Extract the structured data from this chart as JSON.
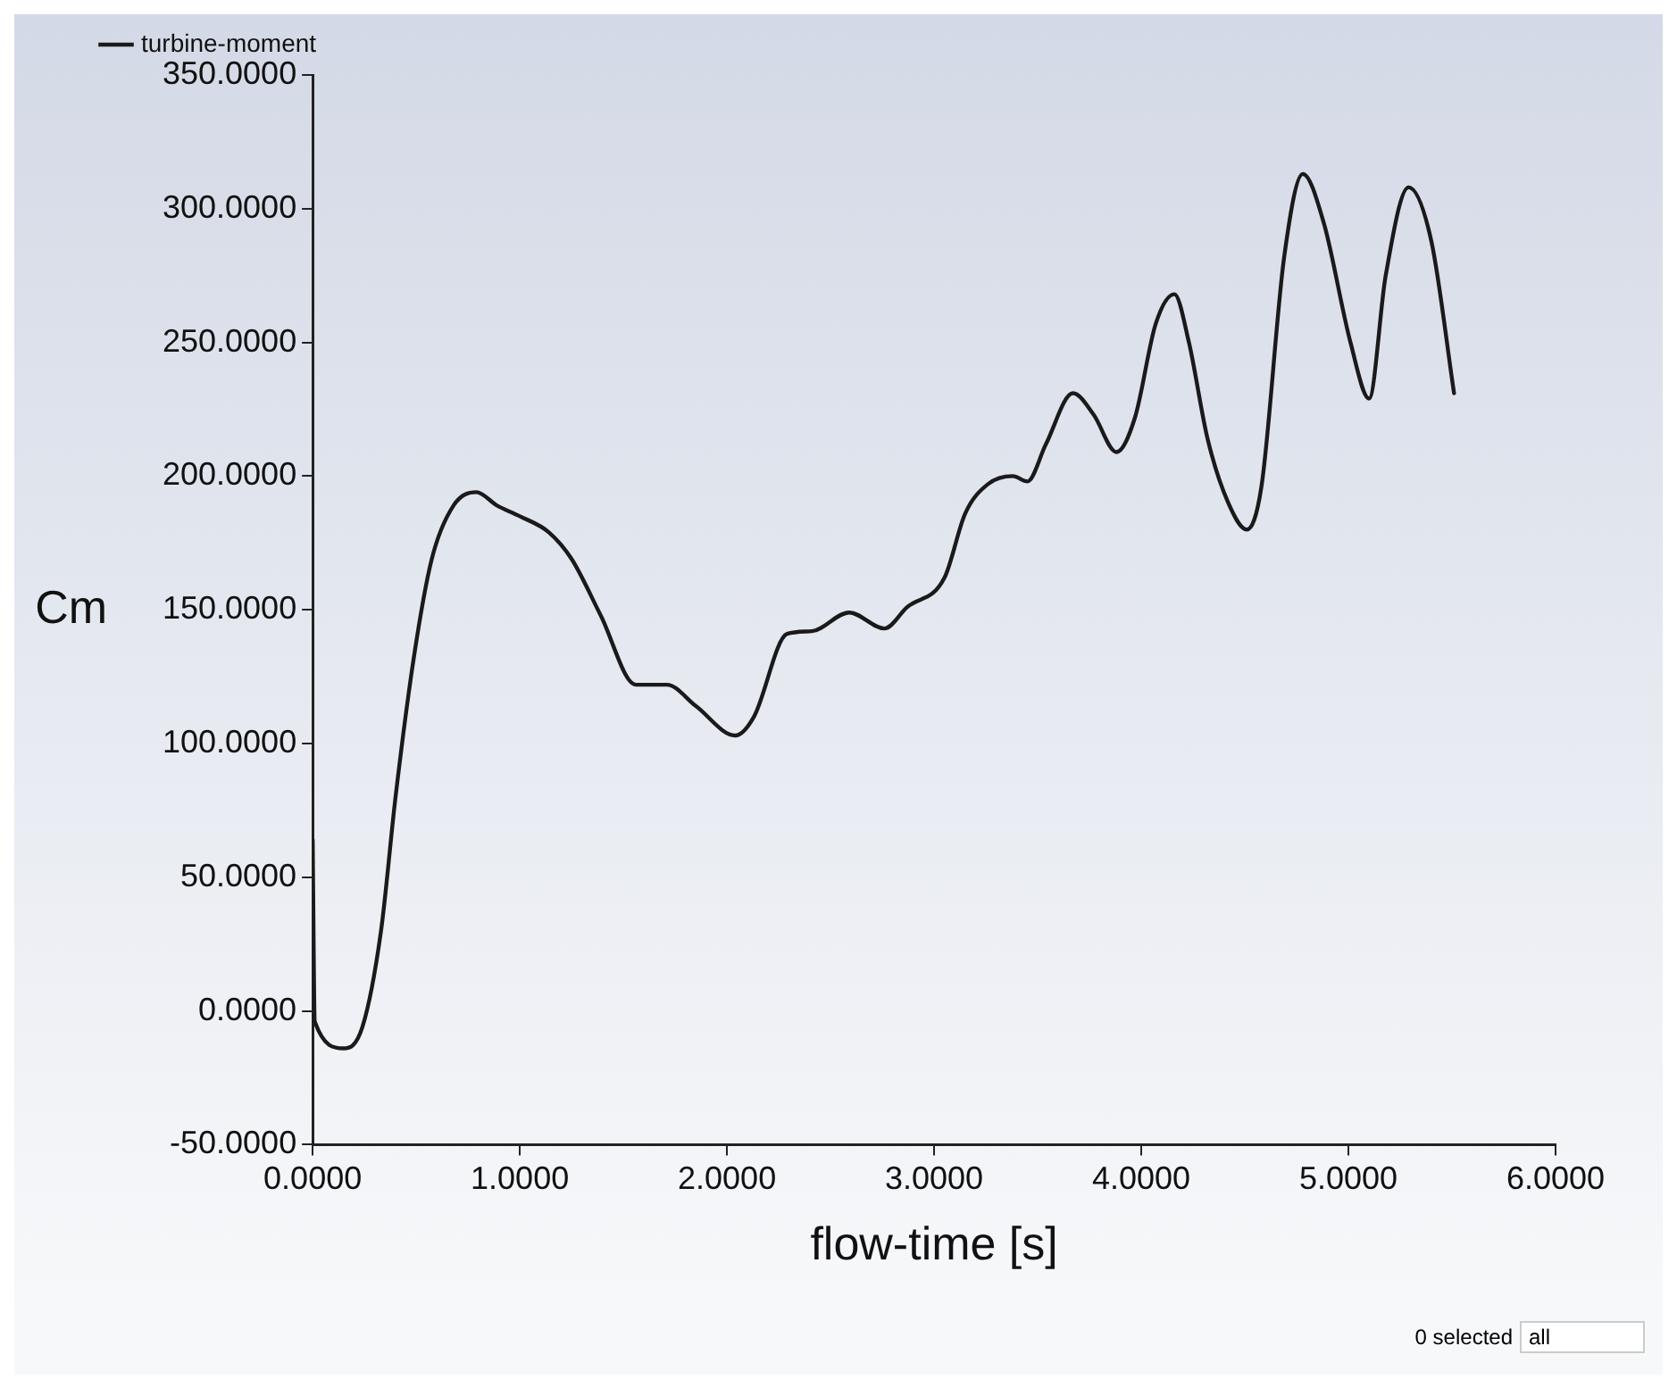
{
  "chart_data": {
    "type": "line",
    "xlabel": "flow-time [s]",
    "ylabel": "Cm",
    "legend": "top left",
    "marker": "none",
    "line_style": "solid",
    "grid": false,
    "xlim": [
      0,
      6
    ],
    "xticks": [
      {
        "value": 0,
        "label": "0.0000"
      },
      {
        "value": 1,
        "label": "1.0000"
      },
      {
        "value": 2,
        "label": "2.0000"
      },
      {
        "value": 3,
        "label": "3.0000"
      },
      {
        "value": 4,
        "label": "4.0000"
      },
      {
        "value": 5,
        "label": "5.0000"
      },
      {
        "value": 6,
        "label": "6.0000"
      }
    ],
    "ylim": [
      -50,
      350
    ],
    "yticks": [
      {
        "value": -50,
        "label": "-50.0000"
      },
      {
        "value": 0,
        "label": "0.0000"
      },
      {
        "value": 50,
        "label": "50.0000"
      },
      {
        "value": 100,
        "label": "100.0000"
      },
      {
        "value": 150,
        "label": "150.0000"
      },
      {
        "value": 200,
        "label": "200.0000"
      },
      {
        "value": 250,
        "label": "250.0000"
      },
      {
        "value": 300,
        "label": "300.0000"
      },
      {
        "value": 350,
        "label": "350.0000"
      }
    ],
    "annotations": [
      "0 selected",
      "all"
    ],
    "series": [
      {
        "name": "turbine-moment",
        "color": "#1a1a1a",
        "x": [
          0,
          0.01,
          0.15,
          0.24,
          0.33,
          0.4,
          0.49,
          0.575,
          0.68,
          0.79,
          0.89,
          1.0,
          1.14,
          1.25,
          1.39,
          1.56,
          1.71,
          1.85,
          2.04,
          2.13,
          2.29,
          2.41,
          2.59,
          2.76,
          2.87,
          3.05,
          3.15,
          3.26,
          3.38,
          3.45,
          3.54,
          3.67,
          3.77,
          3.88,
          3.97,
          4.07,
          4.16,
          4.23,
          4.32,
          4.42,
          4.51,
          4.58,
          4.69,
          4.78,
          4.88,
          5.01,
          5.1,
          5.18,
          5.29,
          5.4,
          5.51
        ],
        "values": [
          64,
          -4,
          -14,
          -6,
          30,
          80,
          133,
          169,
          189,
          194,
          189,
          185,
          179,
          169,
          148,
          122,
          122,
          114,
          103,
          110,
          141,
          142,
          149,
          143,
          151,
          162,
          186,
          197,
          200,
          198,
          212,
          231,
          223,
          209,
          222,
          257,
          268,
          250,
          214,
          190,
          180,
          196,
          282,
          313,
          295,
          250,
          229,
          275,
          308,
          288,
          231
        ]
      }
    ]
  }
}
